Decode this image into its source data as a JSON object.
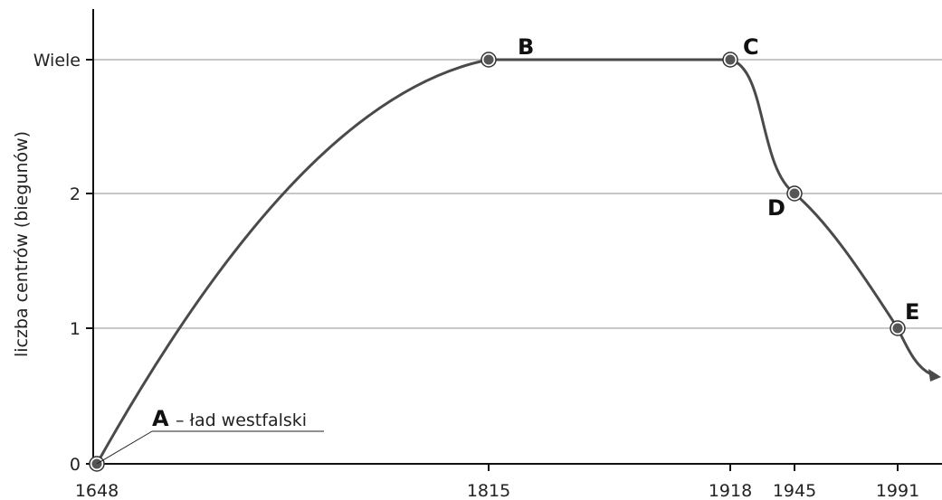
{
  "chart_data": {
    "type": "line",
    "title": "",
    "xlabel": "",
    "ylabel": "liczba centrów (biegunów)",
    "x_ticks": [
      "1648",
      "1815",
      "1918",
      "1945",
      "1991"
    ],
    "y_ticks": [
      "0",
      "1",
      "2",
      "Wiele"
    ],
    "xlim": [
      1648,
      1996
    ],
    "ylim": [
      0,
      3
    ],
    "grid": "horizontal",
    "series": [
      {
        "points": [
          {
            "x": 1648,
            "y": 0,
            "label": "A"
          },
          {
            "x": 1815,
            "y": 3,
            "label": "B"
          },
          {
            "x": 1918,
            "y": 3,
            "label": "C"
          },
          {
            "x": 1945,
            "y": 2,
            "label": "D"
          },
          {
            "x": 1991,
            "y": 1,
            "label": "E"
          }
        ],
        "trend_after": "continues downward after 1991 (arrow)"
      }
    ],
    "annotations": [
      {
        "point": "A",
        "letter": "A",
        "text": "– ład westfalski"
      }
    ],
    "colors": {
      "line": "#4a4a4a",
      "grid": "#b5b5b5",
      "axis": "#111111",
      "marker_fill": "#555555"
    }
  }
}
